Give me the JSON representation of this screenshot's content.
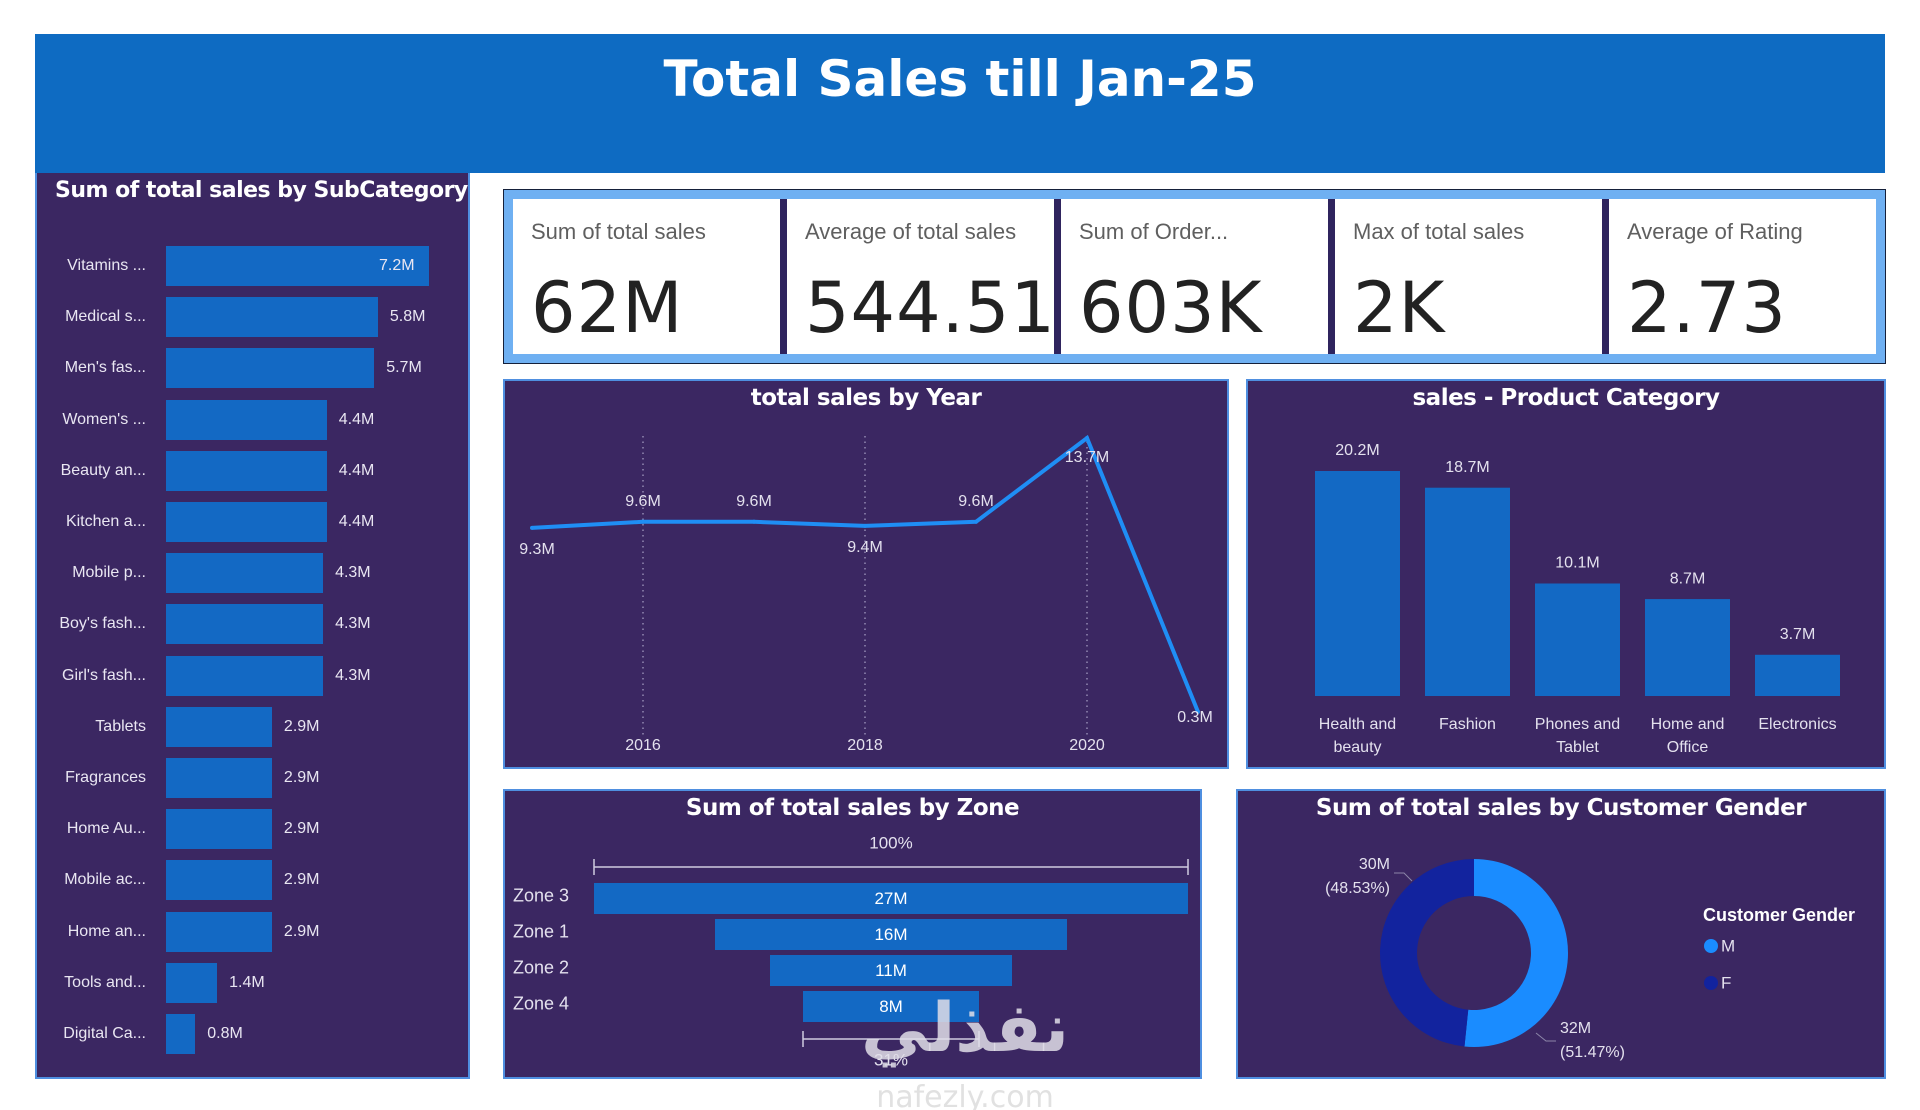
{
  "header": {
    "title": "Total Sales  till Jan-25"
  },
  "colors": {
    "header_bg": "#0e6bc2",
    "panel_bg": "#3b2762",
    "bar": "#1369c4",
    "line": "#1f8ef5",
    "male": "#1a8cff",
    "female": "#12239e",
    "kpi_border": "#6fb0f2"
  },
  "kpis": [
    {
      "label": "Sum of total sales",
      "value": "62M"
    },
    {
      "label": "Average of total sales",
      "value": "544.51"
    },
    {
      "label": "Sum of Order...",
      "value": "603K"
    },
    {
      "label": "Max of total sales",
      "value": "2K"
    },
    {
      "label": "Average of Rating",
      "value": "2.73"
    }
  ],
  "chart_data": [
    {
      "id": "subcategory",
      "type": "bar",
      "orientation": "horizontal",
      "title": "Sum of total sales by SubCategory",
      "categories": [
        "Vitamins ...",
        "Medical s...",
        "Men's fas...",
        "Women's ...",
        "Beauty an...",
        "Kitchen a...",
        "Mobile p...",
        "Boy's fash...",
        "Girl's fash...",
        "Tablets",
        "Fragrances",
        "Home Au...",
        "Mobile ac...",
        "Home an...",
        "Tools and...",
        "Digital Ca..."
      ],
      "values": [
        7.2,
        5.8,
        5.7,
        4.4,
        4.4,
        4.4,
        4.3,
        4.3,
        4.3,
        2.9,
        2.9,
        2.9,
        2.9,
        2.9,
        1.4,
        0.8
      ],
      "labels": [
        "7.2M",
        "5.8M",
        "5.7M",
        "4.4M",
        "4.4M",
        "4.4M",
        "4.3M",
        "4.3M",
        "4.3M",
        "2.9M",
        "2.9M",
        "2.9M",
        "2.9M",
        "2.9M",
        "1.4M",
        "0.8M"
      ],
      "unit": "M",
      "xlim": [
        0,
        7.2
      ]
    },
    {
      "id": "year",
      "type": "line",
      "title": "total sales by Year",
      "x": [
        2015,
        2016,
        2017,
        2018,
        2019,
        2020,
        2021
      ],
      "values": [
        9.3,
        9.6,
        9.6,
        9.4,
        9.6,
        13.7,
        0.3
      ],
      "labels": [
        "9.3M",
        "9.6M",
        "9.6M",
        "9.4M",
        "9.6M",
        "13.7M",
        "0.3M"
      ],
      "xticks": [
        "2016",
        "2018",
        "2020"
      ],
      "xtick_values": [
        2016,
        2018,
        2020
      ],
      "grid": "vertical-dotted",
      "ylim": [
        0,
        13.7
      ]
    },
    {
      "id": "category",
      "type": "bar",
      "title": "sales - Product Category",
      "categories": [
        [
          "Health and",
          "beauty"
        ],
        [
          "Fashion"
        ],
        [
          "Phones and",
          "Tablet"
        ],
        [
          "Home and",
          "Office"
        ],
        [
          "Electronics"
        ]
      ],
      "values": [
        20.2,
        18.7,
        10.1,
        8.7,
        3.7
      ],
      "labels": [
        "20.2M",
        "18.7M",
        "10.1M",
        "8.7M",
        "3.7M"
      ],
      "ylim": [
        0,
        20.2
      ]
    },
    {
      "id": "zone",
      "type": "funnel",
      "title": "Sum of total sales by Zone",
      "categories": [
        "Zone 3",
        "Zone 1",
        "Zone 2",
        "Zone 4"
      ],
      "values": [
        27,
        16,
        11,
        8
      ],
      "labels": [
        "27M",
        "16M",
        "11M",
        "8M"
      ],
      "top_percent_label": "100%",
      "bottom_percent_label": "31%"
    },
    {
      "id": "gender",
      "type": "pie",
      "variant": "donut",
      "title": "Sum of total sales by Customer Gender",
      "legend_title": "Customer Gender",
      "legend_position": "right",
      "categories": [
        "M",
        "F"
      ],
      "values": [
        32,
        30
      ],
      "percents": [
        51.47,
        48.53
      ],
      "labels": [
        [
          "32M",
          "(51.47%)"
        ],
        [
          "30M",
          "(48.53%)"
        ]
      ]
    }
  ],
  "watermark": {
    "text": "نفذلي",
    "sub": "nafezly.com"
  }
}
